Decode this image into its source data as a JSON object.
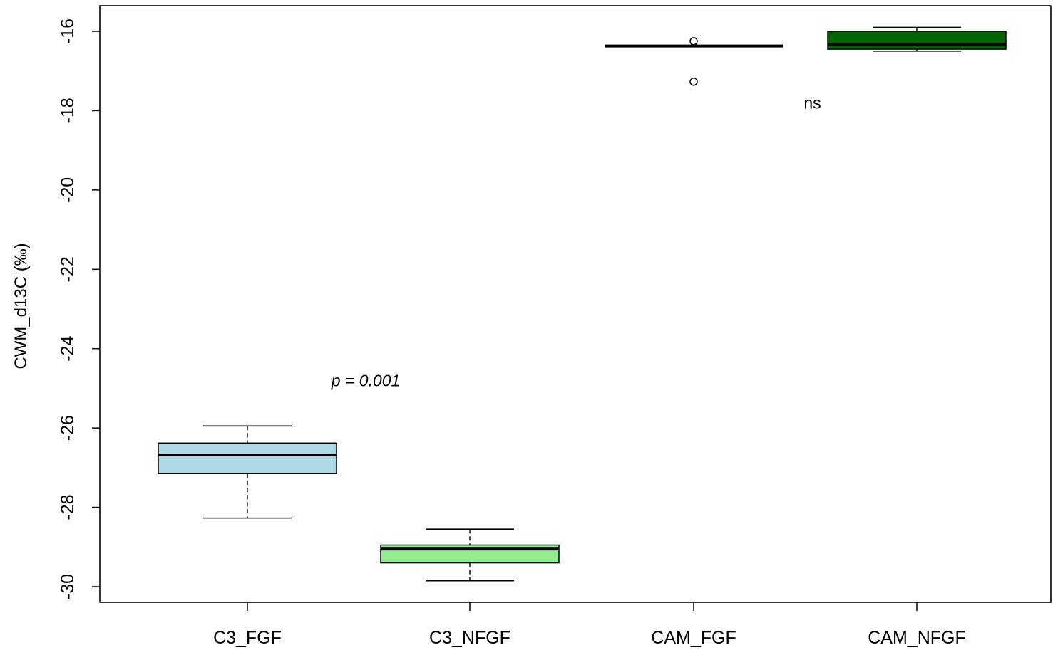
{
  "chart_data": {
    "type": "boxplot",
    "title": "",
    "xlabel": "",
    "ylabel": "CWM_d13C (‰)",
    "ylim": [
      -30.4,
      -15.4
    ],
    "yticks": [
      -30,
      -28,
      -26,
      -24,
      -22,
      -20,
      -18,
      -16
    ],
    "ytick_labels": [
      "-30",
      "-28",
      "-26",
      "-24",
      "-22",
      "-20",
      "-18",
      "-16"
    ],
    "categories": [
      "C3_FGF",
      "C3_NFGF",
      "CAM_FGF",
      "CAM_NFGF"
    ],
    "boxes": [
      {
        "name": "C3_FGF",
        "whisker_low": -28.27,
        "q1": -27.15,
        "median": -26.68,
        "q3": -26.38,
        "whisker_high": -25.95,
        "outliers": [],
        "fill": "#add8e6"
      },
      {
        "name": "C3_NFGF",
        "whisker_low": -29.85,
        "q1": -29.4,
        "median": -29.05,
        "q3": -28.95,
        "whisker_high": -28.55,
        "outliers": [],
        "fill": "#90ee90"
      },
      {
        "name": "CAM_FGF",
        "whisker_low": -16.37,
        "q1": -16.37,
        "median": -16.37,
        "q3": -16.37,
        "whisker_high": -16.37,
        "outliers": [
          -16.25,
          -17.27
        ],
        "fill": "#000000"
      },
      {
        "name": "CAM_NFGF",
        "whisker_low": -16.5,
        "q1": -16.45,
        "median": -16.33,
        "q3": -16.0,
        "whisker_high": -15.9,
        "outliers": [],
        "fill": "#006400"
      }
    ],
    "annotations": [
      {
        "text": "p = 0.001",
        "italic": true,
        "x_between": [
          0,
          1
        ],
        "y": -24.8
      },
      {
        "text": "ns",
        "italic": false,
        "x_between": [
          2,
          3
        ],
        "y": -17.8
      }
    ],
    "grid": false,
    "legend": "none"
  }
}
